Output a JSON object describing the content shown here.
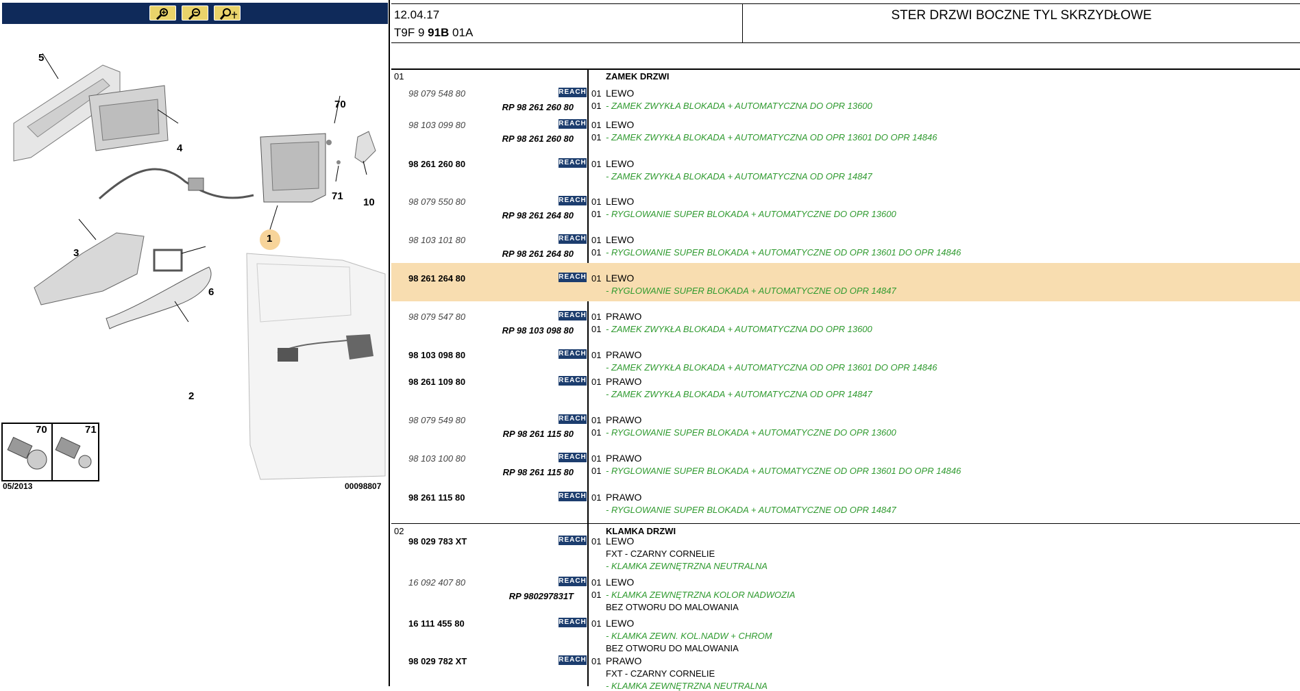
{
  "toolbar": {
    "buttons": [
      {
        "name": "zoom-in",
        "icon": "zoom-in-icon"
      },
      {
        "name": "zoom-out",
        "icon": "zoom-out-icon"
      },
      {
        "name": "zoom-pan",
        "icon": "zoom-pan-icon"
      }
    ]
  },
  "diagram": {
    "callouts": [
      "5",
      "4",
      "70",
      "71",
      "10",
      "1",
      "3",
      "6",
      "2"
    ],
    "fastener_box": {
      "left_num": "70",
      "right_num": "71"
    },
    "date_code": "05/2013",
    "image_code": "00098807"
  },
  "header": {
    "date": "12.04.17",
    "code_prefix": "T9F 9 ",
    "code_bold": "91B",
    "code_suffix": " 01A",
    "title": "STER DRZWI BOCZNE TYL SKRZYDŁOWE"
  },
  "colors": {
    "reach_badge": "#1c3d6e",
    "highlight_row": "#f8ddb0",
    "description": "#2f9a2f",
    "toolbar": "#0f2a5a"
  },
  "groups": [
    {
      "num": "01",
      "category": "ZAMEK DRZWI",
      "rows": [
        {
          "part": "98 079 548 80",
          "style": "old",
          "reach": "REACH",
          "qty": "01",
          "side": "LEWO",
          "rp": "RP 98 261 260 80",
          "rp_qty": "01",
          "desc": "- ZAMEK ZWYKŁA BLOKADA + AUTOMATYCZNA DO OPR 13600"
        },
        {
          "part": "98 103 099 80",
          "style": "old",
          "reach": "REACH",
          "qty": "01",
          "side": "LEWO",
          "rp": "RP 98 261 260 80",
          "rp_qty": "01",
          "desc": "- ZAMEK ZWYKŁA BLOKADA + AUTOMATYCZNA OD OPR 13601 DO OPR 14846"
        },
        {
          "part": "98 261 260 80",
          "style": "std",
          "reach": "REACH",
          "qty": "01",
          "side": "LEWO",
          "desc": "- ZAMEK ZWYKŁA BLOKADA + AUTOMATYCZNA OD OPR 14847"
        },
        {
          "part": "98 079 550 80",
          "style": "old",
          "reach": "REACH",
          "qty": "01",
          "side": "LEWO",
          "rp": "RP 98 261 264 80",
          "rp_qty": "01",
          "desc": "- RYGLOWANIE SUPER BLOKADA + AUTOMATYCZNE DO OPR 13600"
        },
        {
          "part": "98 103 101 80",
          "style": "old",
          "reach": "REACH",
          "qty": "01",
          "side": "LEWO",
          "rp": "RP 98 261 264 80",
          "rp_qty": "01",
          "desc": "- RYGLOWANIE SUPER BLOKADA + AUTOMATYCZNE OD OPR 13601 DO OPR 14846"
        },
        {
          "part": "98 261 264 80",
          "style": "std",
          "reach": "REACH",
          "qty": "01",
          "side": "LEWO",
          "desc": "- RYGLOWANIE SUPER BLOKADA + AUTOMATYCZNE OD OPR 14847",
          "highlight": true
        },
        {
          "part": "98 079 547 80",
          "style": "old",
          "reach": "REACH",
          "qty": "01",
          "side": "PRAWO",
          "rp": "RP 98 103 098 80",
          "rp_qty": "01",
          "desc": "- ZAMEK ZWYKŁA BLOKADA + AUTOMATYCZNA DO OPR 13600"
        },
        {
          "part": "98 103 098 80",
          "style": "std",
          "reach": "REACH",
          "qty": "01",
          "side": "PRAWO",
          "desc": "- ZAMEK ZWYKŁA BLOKADA + AUTOMATYCZNA OD OPR 13601 DO OPR 14846"
        },
        {
          "part": "98 261 109 80",
          "style": "std",
          "reach": "REACH",
          "qty": "01",
          "side": "PRAWO",
          "desc": "- ZAMEK ZWYKŁA BLOKADA + AUTOMATYCZNA OD OPR 14847"
        },
        {
          "part": "98 079 549 80",
          "style": "old",
          "reach": "REACH",
          "qty": "01",
          "side": "PRAWO",
          "rp": "RP 98 261 115 80",
          "rp_qty": "01",
          "desc": "- RYGLOWANIE SUPER BLOKADA + AUTOMATYCZNE DO OPR 13600"
        },
        {
          "part": "98 103 100 80",
          "style": "old",
          "reach": "REACH",
          "qty": "01",
          "side": "PRAWO",
          "rp": "RP 98 261 115 80",
          "rp_qty": "01",
          "desc": "- RYGLOWANIE SUPER BLOKADA + AUTOMATYCZNE OD OPR 13601 DO OPR 14846"
        },
        {
          "part": "98 261 115 80",
          "style": "std",
          "reach": "REACH",
          "qty": "01",
          "side": "PRAWO",
          "desc": "- RYGLOWANIE SUPER BLOKADA + AUTOMATYCZNE OD OPR 14847"
        }
      ]
    },
    {
      "num": "02",
      "category": "KLAMKA DRZWI",
      "rows": [
        {
          "part": "98 029 783 XT",
          "style": "std",
          "reach": "REACH",
          "qty": "01",
          "side": "LEWO",
          "note": "FXT - CZARNY CORNELIE",
          "desc": "- KLAMKA ZEWNĘTRZNA NEUTRALNA"
        },
        {
          "part": "16 092 407 80",
          "style": "old",
          "reach": "REACH",
          "qty": "01",
          "side": "LEWO",
          "rp": "RP 980297831T",
          "rp_qty": "01",
          "desc": "- KLAMKA ZEWNĘTRZNA KOLOR NADWOZIA",
          "note2": "BEZ OTWORU DO MALOWANIA"
        },
        {
          "part": "16 111 455 80",
          "style": "std",
          "reach": "REACH",
          "qty": "01",
          "side": "LEWO",
          "desc": "- KLAMKA ZEWN. KOL.NADW + CHROM",
          "note2": "BEZ OTWORU DO MALOWANIA"
        },
        {
          "part": "98 029 782 XT",
          "style": "std",
          "reach": "REACH",
          "qty": "01",
          "side": "PRAWO",
          "note": "FXT - CZARNY CORNELIE",
          "desc": "- KLAMKA ZEWNĘTRZNA NEUTRALNA"
        }
      ]
    }
  ]
}
